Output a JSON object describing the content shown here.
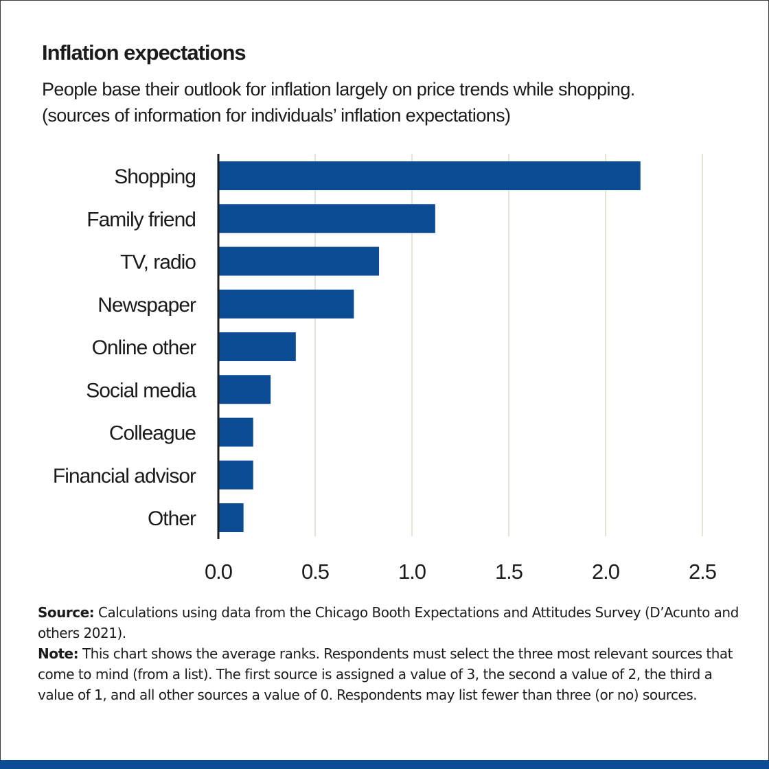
{
  "header": {
    "title": "Inflation expectations",
    "subtitle_line1": "People base their outlook for inflation largely on price trends while shopping.",
    "subtitle_line2": "(sources of information for individuals’ inflation expectations)"
  },
  "chart_data": {
    "type": "bar",
    "orientation": "horizontal",
    "title": "Inflation expectations",
    "subtitle": "People base their outlook for inflation largely on price trends while shopping. (sources of information for individuals’ inflation expectations)",
    "categories": [
      "Shopping",
      "Family friend",
      "TV, radio",
      "Newspaper",
      "Online other",
      "Social media",
      "Colleague",
      "Financial advisor",
      "Other"
    ],
    "values": [
      2.18,
      1.12,
      0.83,
      0.7,
      0.4,
      0.27,
      0.18,
      0.18,
      0.13
    ],
    "xlim": [
      0,
      2.5
    ],
    "xticks": [
      "0.0",
      "0.5",
      "1.0",
      "1.5",
      "2.0",
      "2.5"
    ],
    "xlabel": "",
    "ylabel": "",
    "grid": "vertical",
    "bar_color": "#0c4c94",
    "grid_color": "#e6e3d6"
  },
  "footer": {
    "source_label": "Source:",
    "source_text": " Calculations using data from the Chicago Booth Expectations and Attitudes Survey (D’Acunto and others 2021).",
    "note_label": "Note:",
    "note_text": " This chart shows the average ranks. Respondents must select the three most relevant sources that come to mind (from a list). The first source is assigned a value of 3, the second a value of 2, the third a value of 1, and all other sources a value of 0. Respondents may list fewer than three (or no) sources."
  },
  "colors": {
    "accent_bar": "#0c4c94"
  }
}
